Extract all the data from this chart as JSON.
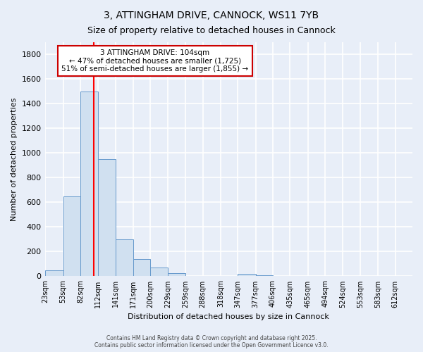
{
  "title": "3, ATTINGHAM DRIVE, CANNOCK, WS11 7YB",
  "subtitle": "Size of property relative to detached houses in Cannock",
  "xlabel": "Distribution of detached houses by size in Cannock",
  "ylabel": "Number of detached properties",
  "bin_edges": [
    23,
    53,
    82,
    112,
    141,
    171,
    200,
    229,
    259,
    288,
    318,
    347,
    377,
    406,
    435,
    465,
    494,
    524,
    553,
    583,
    612
  ],
  "counts": [
    50,
    650,
    1500,
    950,
    300,
    140,
    70,
    25,
    5,
    3,
    2,
    20,
    10,
    5,
    0,
    0,
    0,
    0,
    0,
    0
  ],
  "bar_color": "#d0e0f0",
  "bar_edge_color": "#6699cc",
  "bg_color": "#e8eef8",
  "grid_color": "#ffffff",
  "red_line_x": 104,
  "annotation_title": "3 ATTINGHAM DRIVE: 104sqm",
  "annotation_line1": "← 47% of detached houses are smaller (1,725)",
  "annotation_line2": "51% of semi-detached houses are larger (1,855) →",
  "annotation_box_color": "#ffffff",
  "annotation_border_color": "#cc0000",
  "ylim": [
    0,
    1900
  ],
  "yticks": [
    0,
    200,
    400,
    600,
    800,
    1000,
    1200,
    1400,
    1600,
    1800
  ],
  "copyright_line1": "Contains HM Land Registry data © Crown copyright and database right 2025.",
  "copyright_line2": "Contains public sector information licensed under the Open Government Licence v3.0."
}
